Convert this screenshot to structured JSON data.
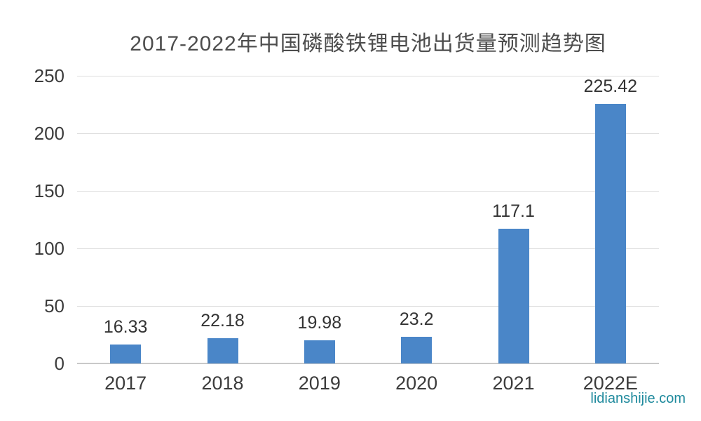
{
  "page": {
    "background": "#FFFFFF"
  },
  "chart_data": {
    "type": "bar",
    "title": "2017-2022年中国磷酸铁锂电池出货量预测趋势图",
    "categories": [
      "2017",
      "2018",
      "2019",
      "2020",
      "2021",
      "2022E"
    ],
    "values": [
      16.33,
      22.18,
      19.98,
      23.2,
      117.1,
      225.42
    ],
    "data_labels": [
      "16.33",
      "22.18",
      "19.98",
      "23.2",
      "117.1",
      "225.42"
    ],
    "xlabel": "",
    "ylabel": "",
    "ylim": [
      0,
      250
    ],
    "yticks": [
      0,
      50,
      100,
      150,
      200,
      250
    ],
    "grid": true,
    "legend": false,
    "colors": {
      "bar": "#4A86C8",
      "title": "#4D4D4D",
      "axis_labels": "#3C3C3C",
      "value_labels": "#333333",
      "gridline": "#DCDCDC",
      "baseline": "#C9C9C9"
    },
    "watermark": {
      "text": "lidianshijie.com",
      "color": "#1F8A9D"
    }
  }
}
